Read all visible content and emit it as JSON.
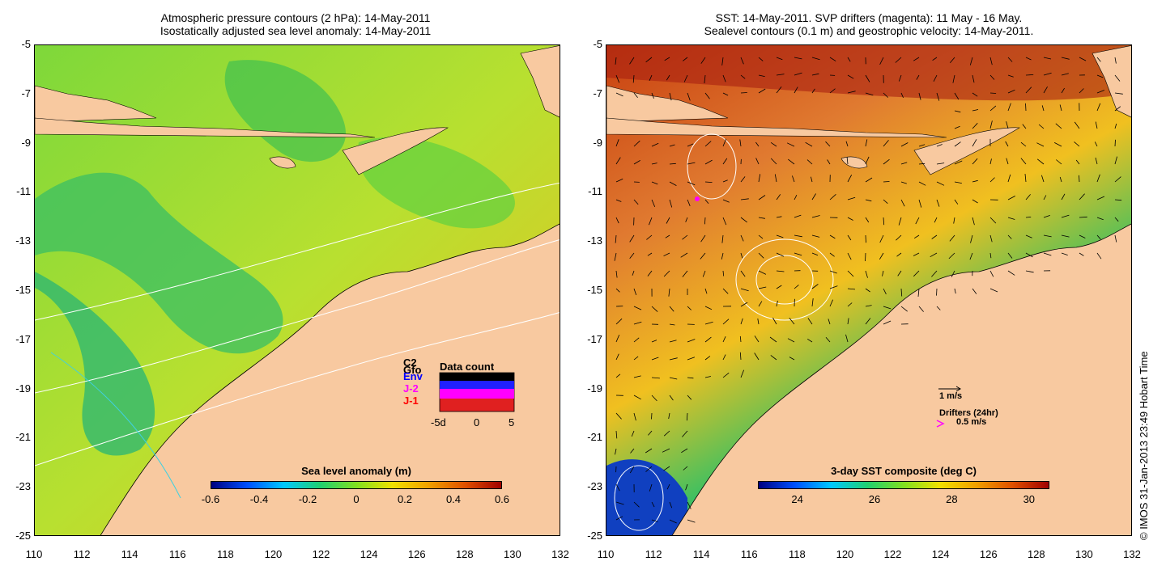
{
  "left_panel": {
    "title_line1": "Atmospheric pressure contours (2 hPa): 14-May-2011",
    "title_line2": "Isostatically adjusted sea level anomaly: 14-May-2011",
    "colorbar_title": "Sea level anomaly (m)",
    "colorbar_ticks": [
      "-0.6",
      "-0.4",
      "-0.2",
      "0",
      "0.2",
      "0.4",
      "0.6"
    ],
    "colorbar_colors": [
      "#000080",
      "#0050ff",
      "#00c8ff",
      "#20d070",
      "#80e020",
      "#f0e000",
      "#f0a000",
      "#e05000",
      "#a00000"
    ],
    "data_count": {
      "title": "Data count",
      "satellites": [
        "C2",
        "Gfo",
        "Env",
        "J-2",
        "J-1"
      ],
      "satellite_colors": [
        "#000000",
        "#000000",
        "#0000ff",
        "#ff00ff",
        "#ff0000"
      ],
      "axis_ticks": [
        "-5d",
        "0",
        "5"
      ]
    }
  },
  "right_panel": {
    "title_line1": "SST: 14-May-2011. SVP drifters (magenta): 11 May - 16 May.",
    "title_line2": "Sealevel contours (0.1 m) and geostrophic velocity: 14-May-2011.",
    "colorbar_title": "3-day SST composite (deg C)",
    "colorbar_ticks": [
      "24",
      "26",
      "28",
      "30"
    ],
    "colorbar_colors": [
      "#000080",
      "#0050ff",
      "#00c8ff",
      "#20d070",
      "#80e020",
      "#f0e000",
      "#f0a000",
      "#e05000",
      "#a00000"
    ],
    "velocity_legend": "1 m/s",
    "drifters_legend": "Drifters (24hr)",
    "drifters_speed": "0.5 m/s"
  },
  "axes": {
    "y_ticks": [
      "-5",
      "-7",
      "-9",
      "-11",
      "-13",
      "-15",
      "-17",
      "-19",
      "-21",
      "-23",
      "-25"
    ],
    "x_ticks": [
      "110",
      "112",
      "114",
      "116",
      "118",
      "120",
      "122",
      "124",
      "126",
      "128",
      "130",
      "132"
    ]
  },
  "credit": "© IMOS 31-Jan-2013 23:49 Hobart Time",
  "colors": {
    "land": "#f8c9a0",
    "sla_sea": "#8fdc40",
    "sst_sea": "#e07a30"
  }
}
